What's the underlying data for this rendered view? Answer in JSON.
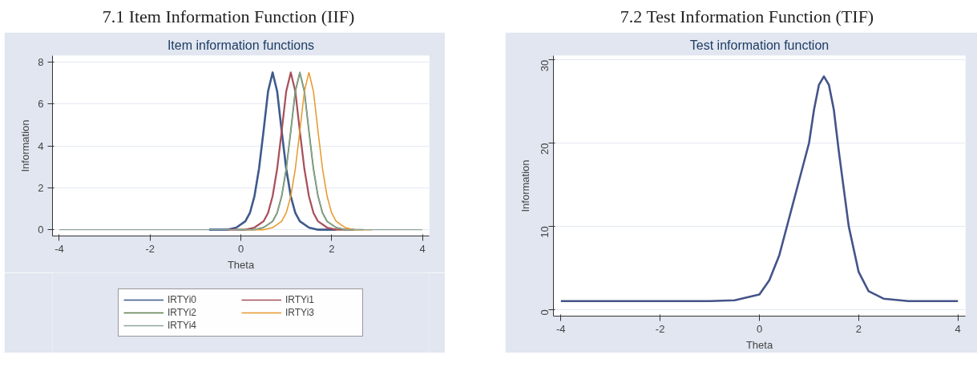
{
  "chart_data": [
    {
      "type": "line",
      "title": "7.1 Item Information Function (IIF)",
      "subtitle": "Item information functions",
      "xlabel": "Theta",
      "ylabel": "Information",
      "xlim": [
        -4.15,
        4.15
      ],
      "ylim": [
        -0.3,
        8.3
      ],
      "xticks": [
        -4,
        -2,
        0,
        2,
        4
      ],
      "yticks": [
        0,
        2,
        4,
        6,
        8
      ],
      "grid": "y",
      "legend": "bottom",
      "series": [
        {
          "name": "IRTYi0",
          "color": "#3e5a8c",
          "x": [
            -0.7,
            -0.3,
            -0.1,
            0.1,
            0.2,
            0.3,
            0.4,
            0.5,
            0.6,
            0.7,
            0.8,
            0.9,
            1.0,
            1.1,
            1.2,
            1.3,
            1.5,
            1.7,
            2.1
          ],
          "values": [
            0,
            0,
            0.1,
            0.4,
            0.8,
            1.6,
            2.9,
            4.7,
            6.6,
            7.5,
            6.6,
            4.7,
            2.9,
            1.6,
            0.8,
            0.4,
            0.1,
            0,
            0
          ]
        },
        {
          "name": "IRTYi1",
          "color": "#a8505a",
          "x": [
            -0.3,
            0.1,
            0.3,
            0.5,
            0.6,
            0.7,
            0.8,
            0.9,
            1.0,
            1.1,
            1.2,
            1.3,
            1.4,
            1.5,
            1.6,
            1.7,
            1.9,
            2.1,
            2.5
          ],
          "values": [
            0,
            0,
            0.1,
            0.4,
            0.8,
            1.6,
            2.9,
            4.7,
            6.6,
            7.5,
            6.6,
            4.7,
            2.9,
            1.6,
            0.8,
            0.4,
            0.1,
            0,
            0
          ]
        },
        {
          "name": "IRTYi2",
          "color": "#5e7e4a",
          "x": [
            -0.1,
            0.3,
            0.5,
            0.7,
            0.8,
            0.9,
            1.0,
            1.1,
            1.2,
            1.3,
            1.4,
            1.5,
            1.6,
            1.7,
            1.8,
            1.9,
            2.1,
            2.3,
            2.7
          ],
          "values": [
            0,
            0,
            0.1,
            0.4,
            0.8,
            1.6,
            2.9,
            4.7,
            6.6,
            7.5,
            6.6,
            4.7,
            2.9,
            1.6,
            0.8,
            0.4,
            0.1,
            0,
            0
          ]
        },
        {
          "name": "IRTYi3",
          "color": "#e89a2c",
          "x": [
            0.1,
            0.5,
            0.7,
            0.9,
            1.0,
            1.1,
            1.2,
            1.3,
            1.4,
            1.5,
            1.6,
            1.7,
            1.8,
            1.9,
            2.0,
            2.1,
            2.3,
            2.5,
            2.9
          ],
          "values": [
            0,
            0,
            0.1,
            0.4,
            0.8,
            1.6,
            2.9,
            4.7,
            6.6,
            7.5,
            6.6,
            4.7,
            2.9,
            1.6,
            0.8,
            0.4,
            0.1,
            0,
            0
          ]
        },
        {
          "name": "IRTYi4",
          "color": "#8ea89a",
          "x": [
            -4,
            -0.1,
            0.3,
            0.5,
            0.7,
            0.8,
            0.9,
            1.0,
            1.1,
            1.2,
            1.3,
            1.4,
            1.5,
            1.6,
            1.7,
            1.8,
            1.9,
            2.1,
            2.3,
            2.7,
            4
          ],
          "values": [
            0,
            0,
            0,
            0.1,
            0.4,
            0.8,
            1.6,
            2.9,
            4.7,
            6.6,
            7.5,
            6.6,
            4.7,
            2.9,
            1.6,
            0.8,
            0.4,
            0.1,
            0,
            0,
            0
          ]
        }
      ]
    },
    {
      "type": "line",
      "title": "7.2 Test Information Function (TIF)",
      "subtitle": "Test information function",
      "xlabel": "Theta",
      "ylabel": "Information",
      "xlim": [
        -4.15,
        4.15
      ],
      "ylim": [
        -0.8,
        30.5
      ],
      "xticks": [
        -4,
        -2,
        0,
        2,
        4
      ],
      "yticks": [
        0,
        10,
        20,
        30
      ],
      "grid": "y",
      "series": [
        {
          "color": "#44548a",
          "x": [
            -4,
            -1,
            -0.5,
            0,
            0.2,
            0.4,
            0.6,
            0.8,
            1.0,
            1.1,
            1.2,
            1.3,
            1.4,
            1.5,
            1.6,
            1.8,
            2.0,
            2.2,
            2.5,
            3,
            4
          ],
          "values": [
            1,
            1,
            1.1,
            1.8,
            3.5,
            6.5,
            11,
            15.5,
            20,
            24,
            27,
            28,
            27,
            24,
            19,
            10,
            4.5,
            2.2,
            1.3,
            1,
            1
          ]
        }
      ]
    }
  ]
}
